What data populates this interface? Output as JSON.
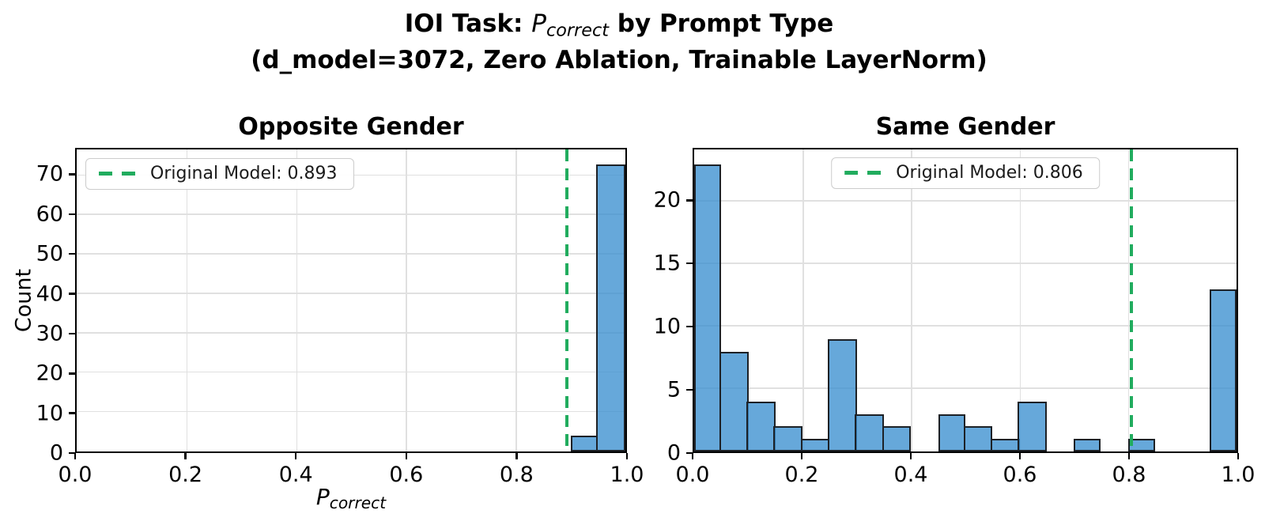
{
  "figure": {
    "title": {
      "prefix": "IOI Task: ",
      "math_var": "P",
      "math_sub": "correct",
      "suffix": " by Prompt Type",
      "line2": "(d_model=3072, Zero Ablation, Trainable LayerNorm)"
    }
  },
  "colors": {
    "bar_fill": "rgba(59,144,208,0.78)",
    "bar_edge": "#1d2126",
    "vline_green": "#21ac5e",
    "grid": "#e0e0e0",
    "spine": "#000000",
    "legend_border": "#cccccc"
  },
  "chart_data": [
    {
      "type": "bar",
      "title": "Opposite Gender",
      "xlabel": {
        "var": "P",
        "sub": "correct"
      },
      "ylabel": "Count",
      "xlim": [
        0.0,
        1.0
      ],
      "ylim": [
        0,
        76.65
      ],
      "grid": true,
      "bin_width": 0.05,
      "xticks": [
        "0.0",
        "0.2",
        "0.4",
        "0.6",
        "0.8",
        "1.0"
      ],
      "xtick_values": [
        0.0,
        0.2,
        0.4,
        0.6,
        0.8,
        1.0
      ],
      "yticks": [
        "0",
        "10",
        "20",
        "30",
        "40",
        "50",
        "60",
        "70"
      ],
      "ytick_values": [
        0,
        10,
        20,
        30,
        40,
        50,
        60,
        70
      ],
      "bars": [
        {
          "start": 0.9,
          "count": 4
        },
        {
          "start": 0.95,
          "count": 73
        }
      ],
      "vline": {
        "x": 0.893,
        "legend_label": "Original Model: 0.893"
      },
      "legend_position": "upper-left"
    },
    {
      "type": "bar",
      "title": "Same Gender",
      "xlabel": null,
      "ylabel": null,
      "xlim": [
        0.0,
        1.0
      ],
      "ylim": [
        0,
        24.15
      ],
      "grid": true,
      "bin_width": 0.05,
      "xticks": [
        "0.0",
        "0.2",
        "0.4",
        "0.6",
        "0.8",
        "1.0"
      ],
      "xtick_values": [
        0.0,
        0.2,
        0.4,
        0.6,
        0.8,
        1.0
      ],
      "yticks": [
        "0",
        "5",
        "10",
        "15",
        "20"
      ],
      "ytick_values": [
        0,
        5,
        10,
        15,
        20
      ],
      "bars": [
        {
          "start": 0.0,
          "count": 23
        },
        {
          "start": 0.05,
          "count": 8
        },
        {
          "start": 0.1,
          "count": 4
        },
        {
          "start": 0.15,
          "count": 2
        },
        {
          "start": 0.2,
          "count": 1
        },
        {
          "start": 0.25,
          "count": 9
        },
        {
          "start": 0.3,
          "count": 3
        },
        {
          "start": 0.35,
          "count": 2
        },
        {
          "start": 0.45,
          "count": 3
        },
        {
          "start": 0.5,
          "count": 2
        },
        {
          "start": 0.55,
          "count": 1
        },
        {
          "start": 0.6,
          "count": 4
        },
        {
          "start": 0.7,
          "count": 1
        },
        {
          "start": 0.8,
          "count": 1
        },
        {
          "start": 0.95,
          "count": 13
        }
      ],
      "vline": {
        "x": 0.806,
        "legend_label": "Original Model: 0.806"
      },
      "legend_position": "upper-center"
    }
  ]
}
